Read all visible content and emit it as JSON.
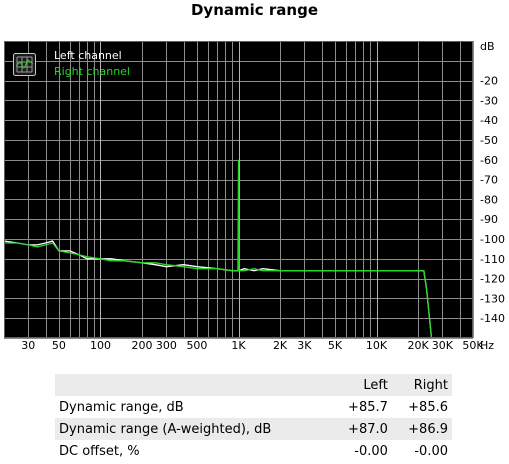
{
  "chart_data": {
    "type": "line",
    "title": "Dynamic range",
    "x_scale": "log",
    "xlim": [
      20,
      50000
    ],
    "ylim": [
      -150,
      0
    ],
    "x_unit": "Hz",
    "y_unit": "dB",
    "grid": true,
    "legend_position": "top-left",
    "background": "#000000",
    "x_ticks": [
      {
        "label": "30",
        "value": 30
      },
      {
        "label": "50",
        "value": 50
      },
      {
        "label": "100",
        "value": 100
      },
      {
        "label": "200",
        "value": 200
      },
      {
        "label": "300",
        "value": 300
      },
      {
        "label": "500",
        "value": 500
      },
      {
        "label": "1K",
        "value": 1000
      },
      {
        "label": "2K",
        "value": 2000
      },
      {
        "label": "3K",
        "value": 3000
      },
      {
        "label": "5K",
        "value": 5000
      },
      {
        "label": "10K",
        "value": 10000
      },
      {
        "label": "20K",
        "value": 20000
      },
      {
        "label": "30K",
        "value": 30000
      },
      {
        "label": "50K",
        "value": 50000
      }
    ],
    "y_ticks": [
      {
        "label": "-20",
        "value": -20
      },
      {
        "label": "-30",
        "value": -30
      },
      {
        "label": "-40",
        "value": -40
      },
      {
        "label": "-50",
        "value": -50
      },
      {
        "label": "-60",
        "value": -60
      },
      {
        "label": "-70",
        "value": -70
      },
      {
        "label": "-80",
        "value": -80
      },
      {
        "label": "-90",
        "value": -90
      },
      {
        "label": "-100",
        "value": -100
      },
      {
        "label": "-110",
        "value": -110
      },
      {
        "label": "-120",
        "value": -120
      },
      {
        "label": "-130",
        "value": -130
      },
      {
        "label": "-140",
        "value": -140
      }
    ],
    "series": [
      {
        "name": "Left channel",
        "color": "#ffffff",
        "x": [
          20,
          25,
          30,
          35,
          40,
          45,
          50,
          60,
          70,
          80,
          100,
          120,
          150,
          200,
          250,
          300,
          400,
          500,
          700,
          900,
          1000,
          1100,
          1300,
          1500,
          2000,
          3000,
          5000,
          7000,
          10000,
          15000,
          20000,
          22000,
          23000,
          25000
        ],
        "y": [
          -101,
          -102,
          -103,
          -103,
          -102,
          -101,
          -106,
          -106,
          -108,
          -110,
          -110,
          -110,
          -111,
          -112,
          -113,
          -114,
          -113,
          -114,
          -115,
          -116,
          -116,
          -115,
          -116,
          -115,
          -116,
          -116,
          -116,
          -116,
          -116,
          -116,
          -116,
          -116,
          -125,
          -150
        ]
      },
      {
        "name": "Right channel",
        "color": "#2ad42a",
        "x": [
          20,
          25,
          30,
          35,
          40,
          45,
          50,
          60,
          70,
          80,
          100,
          120,
          150,
          200,
          250,
          300,
          400,
          500,
          700,
          900,
          990,
          1000,
          1010,
          1100,
          1300,
          1500,
          2000,
          3000,
          5000,
          7000,
          10000,
          15000,
          20000,
          22000,
          23000,
          25000
        ],
        "y": [
          -102,
          -102,
          -103,
          -104,
          -103,
          -102,
          -106,
          -107,
          -108,
          -109,
          -110,
          -111,
          -111,
          -112,
          -112,
          -113,
          -114,
          -115,
          -115,
          -116,
          -116,
          -60,
          -116,
          -116,
          -115,
          -116,
          -116,
          -116,
          -116,
          -116,
          -116,
          -116,
          -116,
          -116,
          -125,
          -150
        ]
      }
    ]
  },
  "table": {
    "headers": [
      "",
      "Left",
      "Right"
    ],
    "rows": [
      {
        "label": "Dynamic range, dB",
        "left": "+85.7",
        "right": "+85.6"
      },
      {
        "label": "Dynamic range (A-weighted), dB",
        "left": "+87.0",
        "right": "+86.9"
      },
      {
        "label": "DC offset, %",
        "left": "-0.00",
        "right": "-0.00"
      }
    ]
  }
}
